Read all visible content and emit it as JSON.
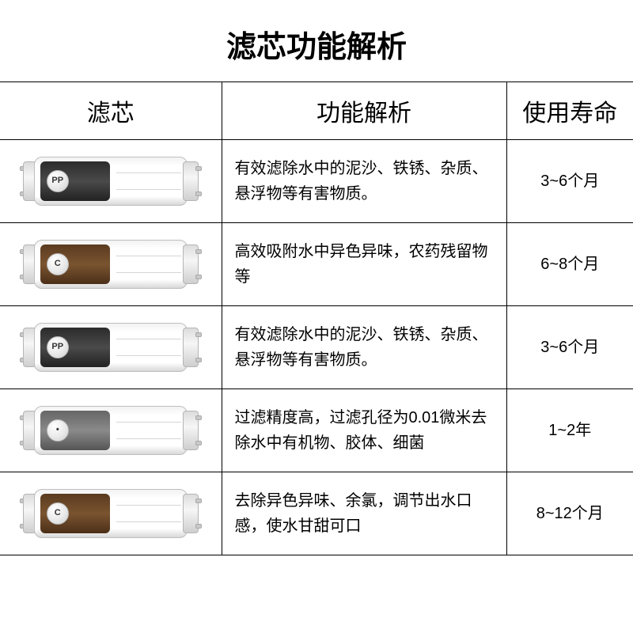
{
  "title": "滤芯功能解析",
  "columns": {
    "filter": "滤芯",
    "desc": "功能解析",
    "life": "使用寿命"
  },
  "rows": [
    {
      "badge": "PP",
      "band": "dark",
      "desc": "有效滤除水中的泥沙、铁锈、杂质、悬浮物等有害物质。",
      "life": "3~6个月"
    },
    {
      "badge": "C",
      "band": "brown",
      "desc": "高效吸附水中异色异味，农药残留物等",
      "life": "6~8个月"
    },
    {
      "badge": "PP",
      "band": "dark",
      "desc": "有效滤除水中的泥沙、铁锈、杂质、悬浮物等有害物质。",
      "life": "3~6个月"
    },
    {
      "badge": "•",
      "band": "grey",
      "desc": "过滤精度高，过滤孔径为0.01微米去除水中有机物、胶体、细菌",
      "life": "1~2年"
    },
    {
      "badge": "C",
      "band": "brown",
      "desc": "去除异色异味、余氯，调节出水口感，使水甘甜可口",
      "life": "8~12个月"
    }
  ]
}
